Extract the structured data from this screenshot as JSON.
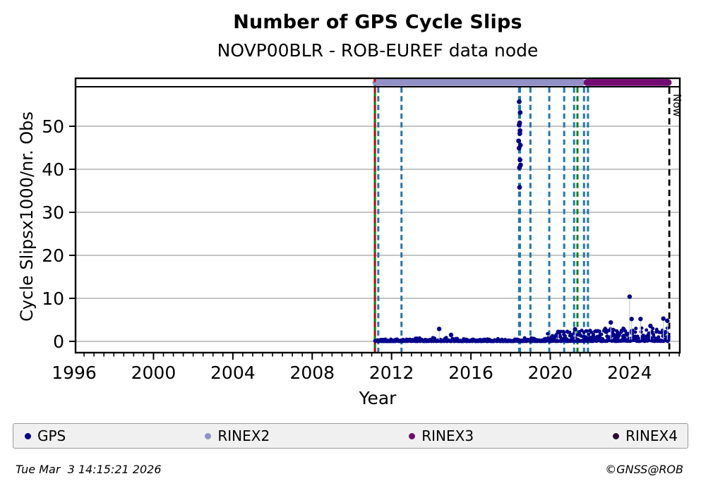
{
  "chart_data": {
    "type": "scatter",
    "title": "Number of GPS Cycle Slips",
    "subtitle": "NOVP00BLR - ROB-EUREF data node",
    "xlabel": "Year",
    "ylabel": "Cycle Slipsx1000/nr. Obs",
    "x_range": [
      1996.07,
      2026.53
    ],
    "y_range": [
      -2.62,
      61.15
    ],
    "x_major_ticks": [
      1996,
      2000,
      2004,
      2008,
      2012,
      2016,
      2020,
      2024
    ],
    "x_minor_step": 0.5,
    "y_ticks": [
      0,
      10,
      20,
      30,
      40,
      50
    ],
    "grid": "horizontal-only",
    "grid_color": "#b0b0b0",
    "now_line": {
      "year": 2026.0,
      "label": "Now",
      "color": "#000000",
      "style": "dashed"
    },
    "rinex_bars": [
      {
        "name": "RINEX2",
        "start": 2011.2,
        "end": 2021.6,
        "color": "#9191c8"
      },
      {
        "name": "RINEX3",
        "start": 2021.85,
        "end": 2025.95,
        "color": "#730b72"
      }
    ],
    "event_lines": [
      {
        "year": 2011.16,
        "color": "#118211",
        "style": "solid",
        "width": 3.2,
        "full": true
      },
      {
        "year": 2011.16,
        "color": "#d40000",
        "style": "dashed",
        "width": 2.6,
        "full": true
      },
      {
        "year": 2011.33,
        "color": "#1f77b4",
        "style": "dashed",
        "width": 3
      },
      {
        "year": 2012.5,
        "color": "#1f77b4",
        "style": "dashed",
        "width": 3
      },
      {
        "year": 2018.45,
        "color": "#1f77b4",
        "style": "dashed",
        "width": 4.2
      },
      {
        "year": 2019.0,
        "color": "#1f77b4",
        "style": "dashed",
        "width": 3
      },
      {
        "year": 2019.95,
        "color": "#1f77b4",
        "style": "dashed",
        "width": 3
      },
      {
        "year": 2020.7,
        "color": "#1f77b4",
        "style": "dashed",
        "width": 3
      },
      {
        "year": 2021.2,
        "color": "#1f77b4",
        "style": "dashed",
        "width": 3
      },
      {
        "year": 2021.37,
        "color": "#118211",
        "style": "dashed",
        "width": 3
      },
      {
        "year": 2021.7,
        "color": "#1f77b4",
        "style": "dashed",
        "width": 3
      },
      {
        "year": 2021.9,
        "color": "#1f77b4",
        "style": "dashed",
        "width": 3
      }
    ],
    "series": [
      {
        "name": "GPS",
        "color": "#00008b",
        "marker": "dot",
        "baseline_segments": [
          {
            "start": 2011.16,
            "end": 2013.0,
            "y_max": 0.5
          },
          {
            "start": 2013.0,
            "end": 2015.6,
            "y_max": 0.9
          },
          {
            "start": 2015.6,
            "end": 2018.4,
            "y_max": 0.6
          },
          {
            "start": 2018.4,
            "end": 2019.85,
            "y_max": 0.8
          },
          {
            "start": 2019.85,
            "end": 2020.35,
            "y_max": 1.9
          },
          {
            "start": 2020.35,
            "end": 2022.4,
            "y_max": 2.6
          },
          {
            "start": 2022.4,
            "end": 2025.98,
            "y_max": 3.1
          }
        ],
        "spike_cluster": {
          "year": 2018.45,
          "values": [
            55.7,
            53.2,
            50.8,
            50.3,
            49.0,
            48.3,
            46.6,
            45.6,
            44.9,
            42.2,
            41.0,
            40.4,
            35.8
          ]
        },
        "outliers": [
          {
            "x": 2014.4,
            "y": 2.9
          },
          {
            "x": 2015.0,
            "y": 1.5
          },
          {
            "x": 2020.4,
            "y": 2.2
          },
          {
            "x": 2021.25,
            "y": 2.8
          },
          {
            "x": 2023.05,
            "y": 4.4
          },
          {
            "x": 2024.0,
            "y": 10.4
          },
          {
            "x": 2024.1,
            "y": 5.2
          },
          {
            "x": 2024.55,
            "y": 5.2
          },
          {
            "x": 2025.05,
            "y": 3.6
          },
          {
            "x": 2025.7,
            "y": 5.3
          },
          {
            "x": 2025.9,
            "y": 4.8
          }
        ]
      }
    ],
    "legend": [
      {
        "label": "GPS",
        "color": "#00008b"
      },
      {
        "label": "RINEX2",
        "color": "#9191c8"
      },
      {
        "label": "RINEX3",
        "color": "#730b72"
      },
      {
        "label": "RINEX4",
        "color": "#2d0830"
      }
    ]
  },
  "footer": {
    "timestamp": "Tue Mar  3 14:15:21 2026",
    "copyright": "©GNSS@ROB"
  }
}
